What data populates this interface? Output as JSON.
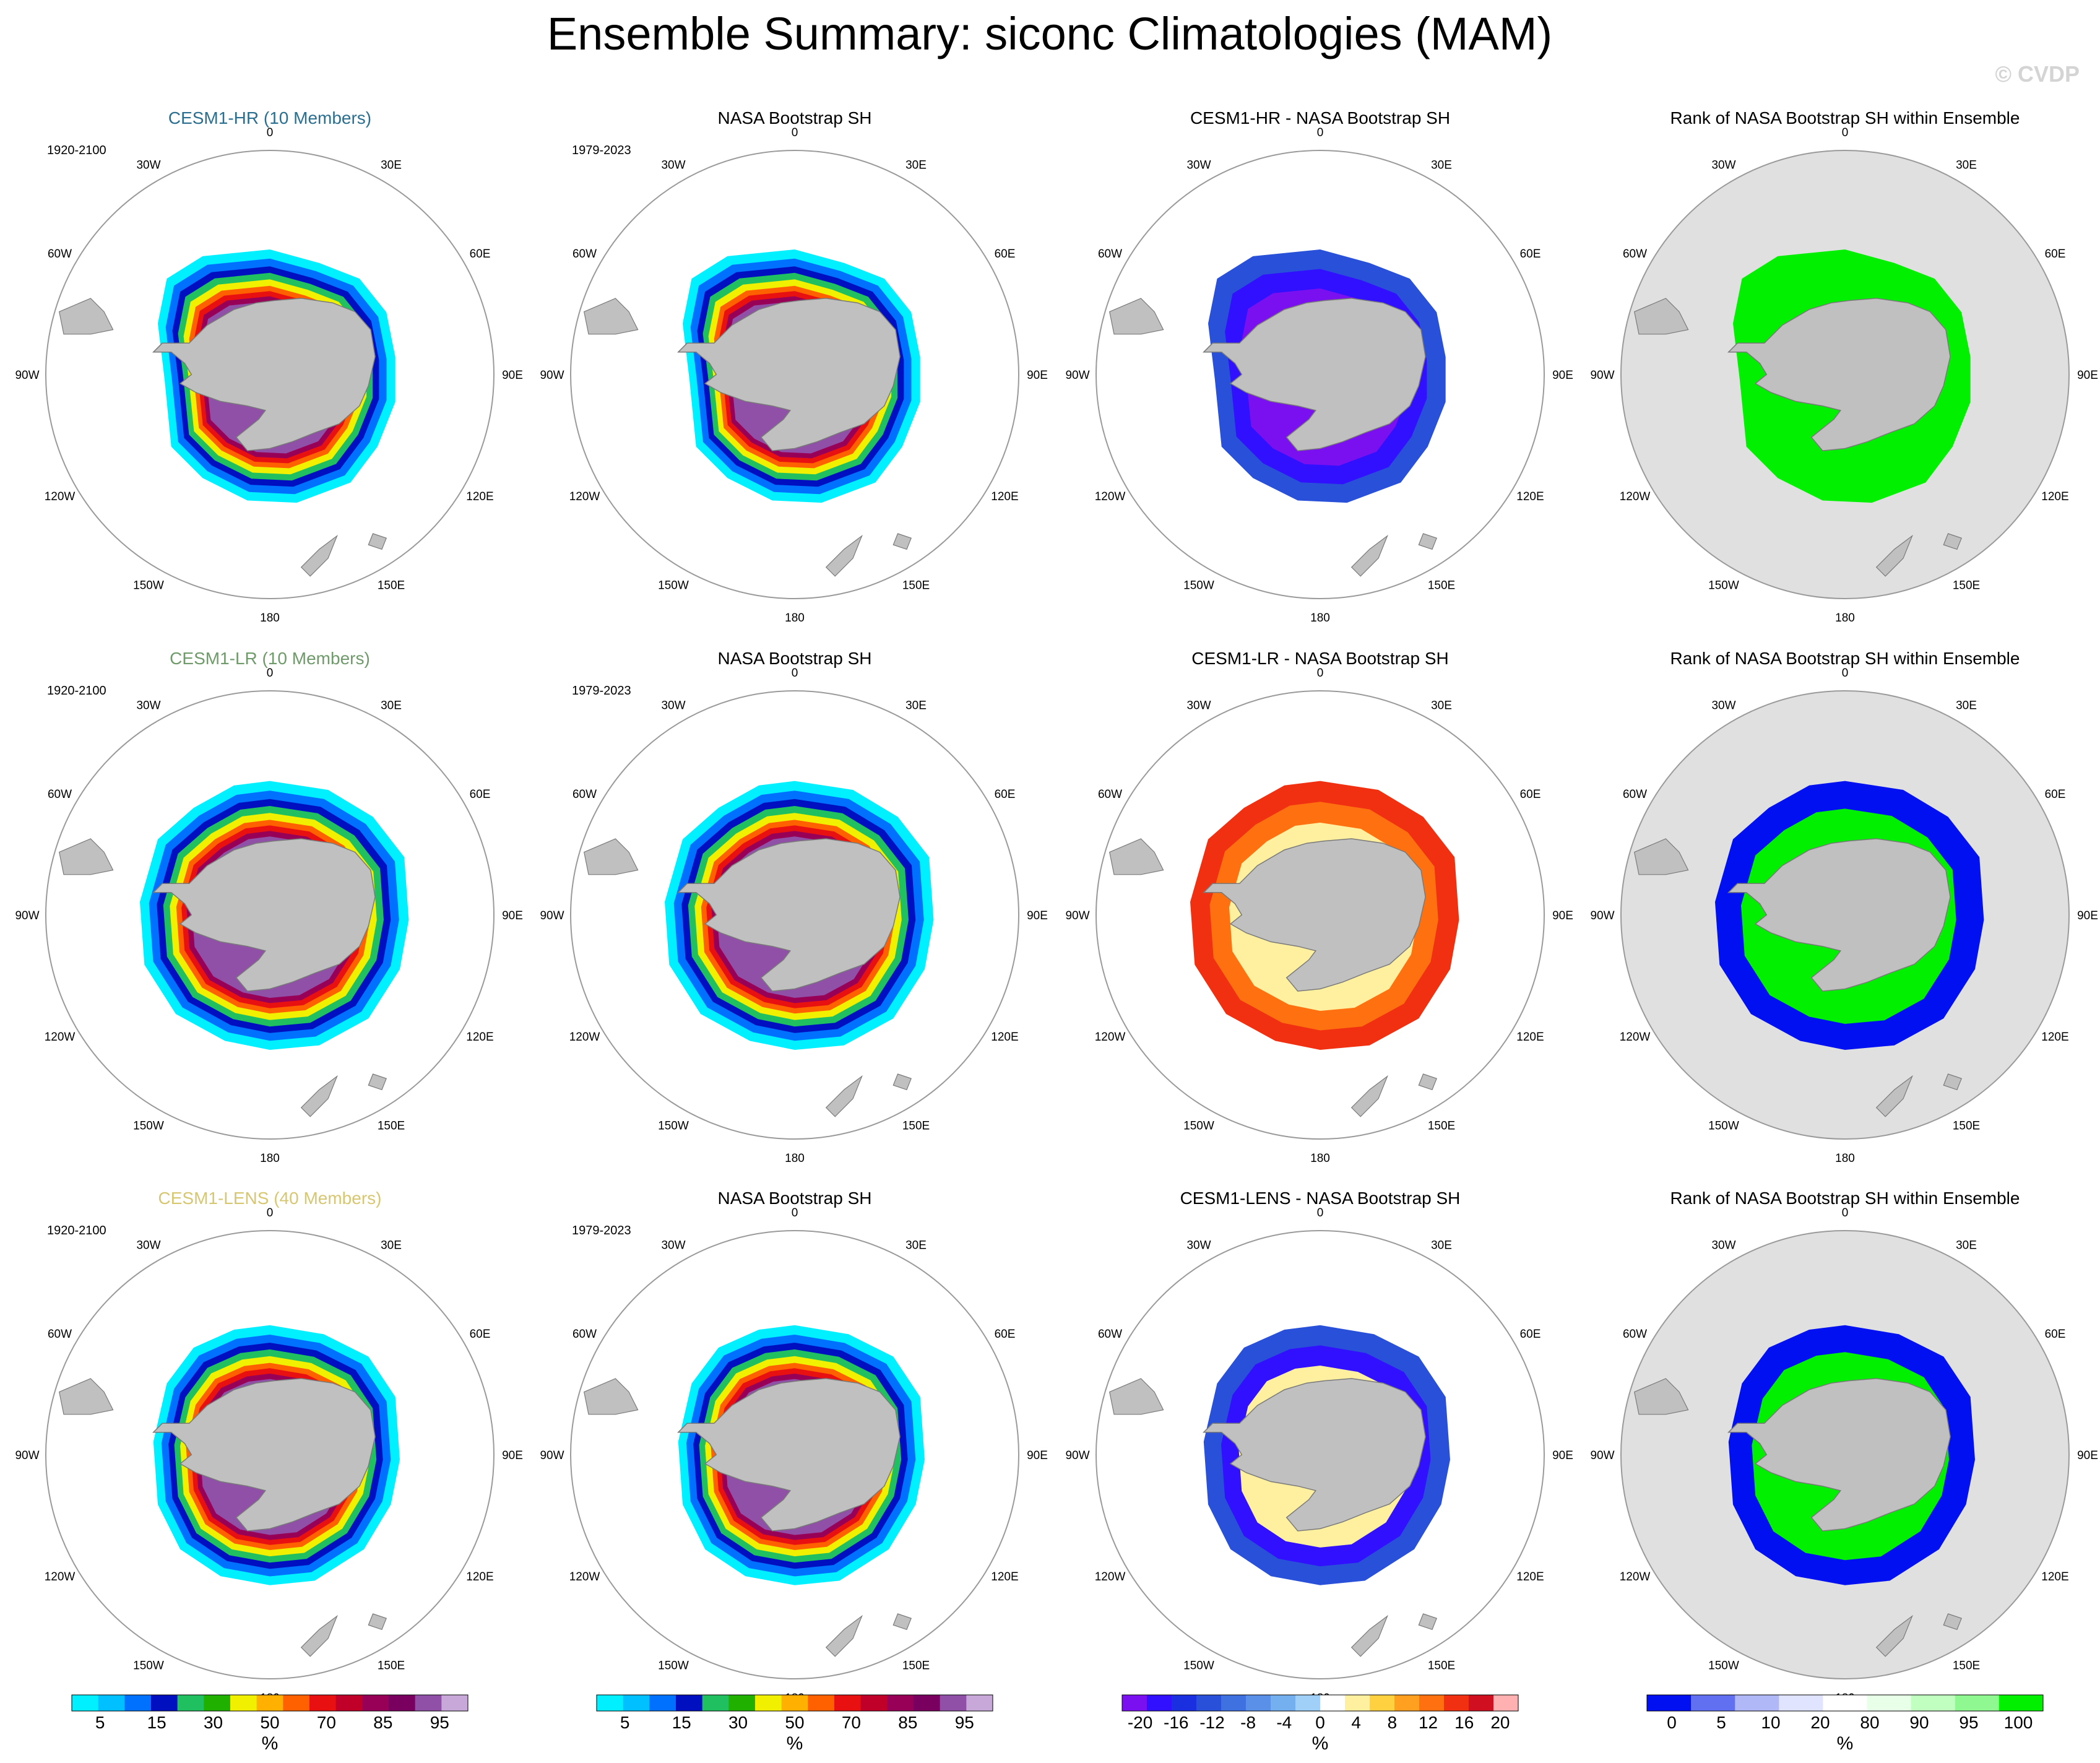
{
  "title": "Ensemble Summary: siconc Climatologies (MAM)",
  "watermark": "© CVDP",
  "lon_labels": [
    "0",
    "30E",
    "60E",
    "90E",
    "120E",
    "150E",
    "180",
    "150W",
    "120W",
    "90W",
    "60W",
    "30W"
  ],
  "rows": [
    {
      "panels": [
        {
          "title": "CESM1-HR (10 Members)",
          "title_color": "#2a6f8f",
          "period": "1920-2100",
          "kind": "model"
        },
        {
          "title": "NASA Bootstrap SH",
          "title_color": "#000000",
          "period": "1979-2023",
          "kind": "obs"
        },
        {
          "title": "CESM1-HR - NASA Bootstrap SH",
          "title_color": "#000000",
          "period": "",
          "kind": "diff"
        },
        {
          "title": "Rank of NASA Bootstrap SH within Ensemble",
          "title_color": "#000000",
          "period": "",
          "kind": "rank"
        }
      ]
    },
    {
      "panels": [
        {
          "title": "CESM1-LR (10 Members)",
          "title_color": "#6f9a6a",
          "period": "1920-2100",
          "kind": "model"
        },
        {
          "title": "NASA Bootstrap SH",
          "title_color": "#000000",
          "period": "1979-2023",
          "kind": "obs"
        },
        {
          "title": "CESM1-LR - NASA Bootstrap SH",
          "title_color": "#000000",
          "period": "",
          "kind": "diff"
        },
        {
          "title": "Rank of NASA Bootstrap SH within Ensemble",
          "title_color": "#000000",
          "period": "",
          "kind": "rank"
        }
      ]
    },
    {
      "panels": [
        {
          "title": "CESM1-LENS (40 Members)",
          "title_color": "#d6c770",
          "period": "1920-2100",
          "kind": "model"
        },
        {
          "title": "NASA Bootstrap SH",
          "title_color": "#000000",
          "period": "1979-2023",
          "kind": "obs"
        },
        {
          "title": "CESM1-LENS - NASA Bootstrap SH",
          "title_color": "#000000",
          "period": "",
          "kind": "diff"
        },
        {
          "title": "Rank of NASA Bootstrap SH within Ensemble",
          "title_color": "#000000",
          "period": "",
          "kind": "rank"
        }
      ]
    }
  ],
  "colorbars": [
    {
      "colors": [
        "#00f0ff",
        "#00c0ff",
        "#0070ff",
        "#0010c0",
        "#20c060",
        "#20b000",
        "#f0f000",
        "#ffb000",
        "#ff6000",
        "#e81010",
        "#c00028",
        "#980058",
        "#7a0060",
        "#9050a8",
        "#c8a8d8"
      ],
      "tick_labels": [
        "5",
        "15",
        "30",
        "50",
        "70",
        "85",
        "95"
      ],
      "unit": "%"
    },
    {
      "colors": [
        "#00f0ff",
        "#00c0ff",
        "#0070ff",
        "#0010c0",
        "#20c060",
        "#20b000",
        "#f0f000",
        "#ffb000",
        "#ff6000",
        "#e81010",
        "#c00028",
        "#980058",
        "#7a0060",
        "#9050a8",
        "#c8a8d8"
      ],
      "tick_labels": [
        "5",
        "15",
        "30",
        "50",
        "70",
        "85",
        "95"
      ],
      "unit": "%"
    },
    {
      "colors": [
        "#7a10f0",
        "#3010ff",
        "#1a30e0",
        "#2850d8",
        "#3f72e0",
        "#5a90e8",
        "#74b0f0",
        "#a0d0f8",
        "#ffffff",
        "#fff0a0",
        "#ffd040",
        "#ffa020",
        "#ff7010",
        "#f03010",
        "#d01020",
        "#ffb0b0"
      ],
      "tick_labels": [
        "-20",
        "-16",
        "-12",
        "-8",
        "-4",
        "0",
        "4",
        "8",
        "12",
        "16",
        "20"
      ],
      "unit": "%"
    },
    {
      "colors": [
        "#0010f0",
        "#6070f0",
        "#b0b8f8",
        "#e0e4ff",
        "#ffffff",
        "#e8ffe8",
        "#c0ffc0",
        "#90f890",
        "#00f000"
      ],
      "tick_labels": [
        "0",
        "5",
        "10",
        "20",
        "80",
        "90",
        "95",
        "100"
      ],
      "unit": "%"
    }
  ],
  "chart_data": [
    {
      "type": "heatmap",
      "title": "CESM1-HR (10 Members)",
      "projection": "South polar stereographic",
      "variable": "siconc",
      "season": "MAM",
      "period": "1920-2100",
      "units": "%",
      "contour_levels": [
        5,
        10,
        15,
        20,
        30,
        40,
        50,
        60,
        70,
        80,
        85,
        90,
        95,
        99
      ]
    },
    {
      "type": "heatmap",
      "title": "NASA Bootstrap SH",
      "projection": "South polar stereographic",
      "variable": "siconc",
      "season": "MAM",
      "period": "1979-2023",
      "units": "%",
      "contour_levels": [
        5,
        10,
        15,
        20,
        30,
        40,
        50,
        60,
        70,
        80,
        85,
        90,
        95,
        99
      ]
    },
    {
      "type": "heatmap",
      "title": "CESM1-HR - NASA Bootstrap SH",
      "projection": "South polar stereographic",
      "variable": "siconc difference",
      "units": "%",
      "contour_levels": [
        -20,
        -18,
        -16,
        -14,
        -12,
        -10,
        -8,
        -6,
        -4,
        -2,
        0,
        2,
        4,
        6,
        8,
        10,
        12,
        14,
        16,
        18,
        20
      ]
    },
    {
      "type": "heatmap",
      "title": "Rank of NASA Bootstrap SH within Ensemble",
      "projection": "South polar stereographic",
      "units": "%",
      "contour_levels": [
        0,
        5,
        10,
        20,
        80,
        90,
        95,
        100
      ]
    },
    {
      "type": "heatmap",
      "title": "CESM1-LR (10 Members)",
      "projection": "South polar stereographic",
      "variable": "siconc",
      "season": "MAM",
      "period": "1920-2100",
      "units": "%"
    },
    {
      "type": "heatmap",
      "title": "CESM1-LR - NASA Bootstrap SH",
      "projection": "South polar stereographic",
      "variable": "siconc difference",
      "units": "%"
    },
    {
      "type": "heatmap",
      "title": "CESM1-LENS (40 Members)",
      "projection": "South polar stereographic",
      "variable": "siconc",
      "season": "MAM",
      "period": "1920-2100",
      "units": "%"
    },
    {
      "type": "heatmap",
      "title": "CESM1-LENS - NASA Bootstrap SH",
      "projection": "South polar stereographic",
      "variable": "siconc difference",
      "units": "%"
    }
  ]
}
